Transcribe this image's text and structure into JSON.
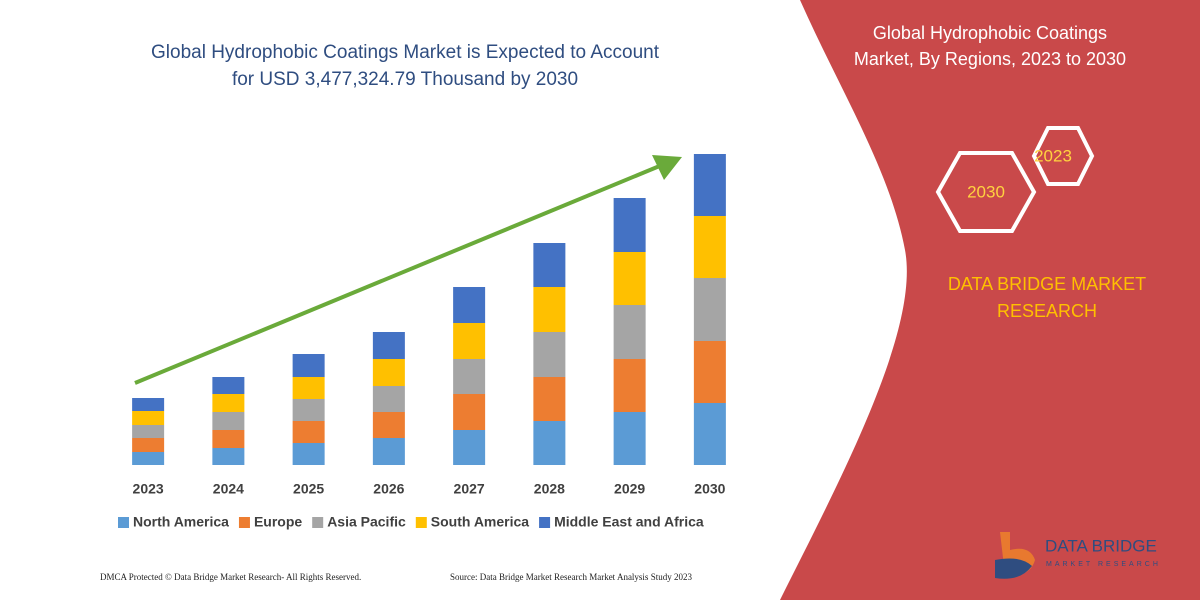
{
  "chart_data": {
    "type": "stacked-bar",
    "title": "Global Hydrophobic Coatings Market is Expected to Account",
    "subtitle": "for USD 3,477,324.79 Thousand by 2030",
    "categories": [
      "2023",
      "2024",
      "2025",
      "2026",
      "2027",
      "2028",
      "2029",
      "2030"
    ],
    "ylim": [
      0,
      311
    ],
    "series": [
      {
        "name": "North America",
        "color": "#5b9bd5",
        "values": [
          13,
          17,
          22,
          27,
          35,
          44,
          53,
          62
        ]
      },
      {
        "name": "Europe",
        "color": "#ed7d31",
        "values": [
          14,
          18,
          22,
          26,
          36,
          44,
          53,
          62
        ]
      },
      {
        "name": "Asia Pacific",
        "color": "#a5a5a5",
        "values": [
          13,
          18,
          22,
          26,
          35,
          45,
          54,
          63
        ]
      },
      {
        "name": "South America",
        "color": "#ffc000",
        "values": [
          14,
          18,
          22,
          27,
          36,
          45,
          53,
          62
        ]
      },
      {
        "name": "Middle East and Africa",
        "color": "#4472c4",
        "values": [
          13,
          17,
          23,
          27,
          36,
          44,
          54,
          62
        ]
      }
    ]
  },
  "panel": {
    "title_line1": "Global Hydrophobic Coatings",
    "title_line2": "Market, By Regions, 2023 to 2030",
    "hex_start": "2023",
    "hex_end": "2030",
    "brand_line1": "DATA BRIDGE MARKET",
    "brand_line2": "RESEARCH",
    "logo_name": "DATA BRIDGE",
    "logo_tagline": "MARKET RESEARCH"
  },
  "footer": {
    "left": "DMCA Protected © Data Bridge Market Research-  All Rights Reserved.",
    "right": "Source: Data Bridge Market Research  Market Analysis Study 2023"
  }
}
